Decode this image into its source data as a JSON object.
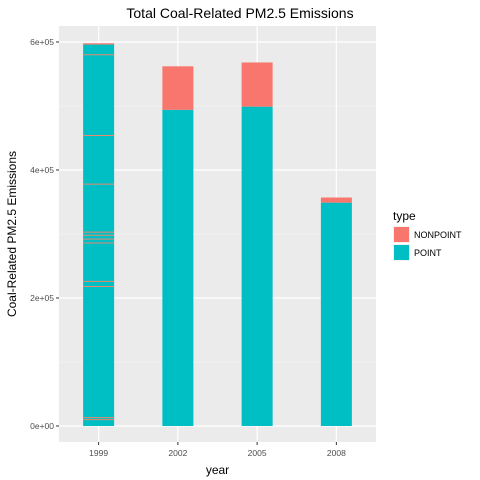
{
  "chart_data": {
    "type": "bar",
    "stacked": true,
    "title": "Total Coal-Related PM2.5 Emissions",
    "xlabel": "year",
    "ylabel": "Coal-Related PM2.5 Emissions",
    "categories": [
      "1999",
      "2002",
      "2005",
      "2008"
    ],
    "ylim": [
      0,
      620000
    ],
    "yticks": [
      {
        "value": 0,
        "label": "0e+00"
      },
      {
        "value": 200000,
        "label": "2e+05"
      },
      {
        "value": 400000,
        "label": "4e+05"
      },
      {
        "value": 600000,
        "label": "6e+05"
      }
    ],
    "legend": {
      "title": "type",
      "placement": "right"
    },
    "series": [
      {
        "name": "POINT",
        "color": "#00BFC4",
        "values": [
          596000,
          494000,
          499000,
          349000
        ]
      },
      {
        "name": "NONPOINT",
        "color": "#F8766D",
        "values": [
          2000,
          68000,
          69000,
          8000
        ]
      }
    ],
    "segment_lines_1999": [
      10000,
      13000,
      218000,
      226000,
      286000,
      292000,
      298000,
      303000,
      378000,
      454000,
      580000
    ],
    "grid": true
  }
}
